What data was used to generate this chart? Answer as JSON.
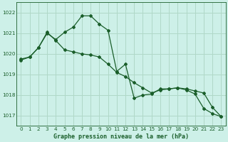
{
  "title": "Graphe pression niveau de la mer (hPa)",
  "bg_color": "#cdf0e8",
  "grid_color": "#b0d8c8",
  "line_color": "#1a5e2a",
  "xlim": [
    -0.5,
    23.5
  ],
  "ylim": [
    1016.5,
    1022.5
  ],
  "yticks": [
    1017,
    1018,
    1019,
    1020,
    1021,
    1022
  ],
  "xticks": [
    0,
    1,
    2,
    3,
    4,
    5,
    6,
    7,
    8,
    9,
    10,
    11,
    12,
    13,
    14,
    15,
    16,
    17,
    18,
    19,
    20,
    21,
    22,
    23
  ],
  "line1_x": [
    0,
    1,
    2,
    3,
    4,
    5,
    6,
    7,
    8,
    9,
    10,
    11,
    12,
    13,
    14,
    15,
    16,
    17,
    18,
    19,
    20,
    21,
    22,
    23
  ],
  "line1_y": [
    1019.7,
    1019.85,
    1020.3,
    1021.0,
    1020.7,
    1021.05,
    1021.3,
    1021.85,
    1021.85,
    1021.45,
    1021.15,
    1019.15,
    1019.5,
    1017.85,
    1018.0,
    1018.05,
    1018.3,
    1018.3,
    1018.35,
    1018.25,
    1018.05,
    1017.35,
    1017.1,
    1016.95
  ],
  "line2_x": [
    0,
    1,
    2,
    3,
    4,
    5,
    6,
    7,
    8,
    9,
    10,
    11,
    12,
    13,
    14,
    15,
    16,
    17,
    18,
    19,
    20,
    21,
    22,
    23
  ],
  "line2_y": [
    1019.75,
    1019.85,
    1020.3,
    1021.05,
    1020.65,
    1020.2,
    1020.1,
    1020.0,
    1019.95,
    1019.85,
    1019.5,
    1019.1,
    1018.9,
    1018.6,
    1018.35,
    1018.1,
    1018.25,
    1018.3,
    1018.35,
    1018.3,
    1018.2,
    1018.1,
    1017.4,
    1016.95
  ]
}
